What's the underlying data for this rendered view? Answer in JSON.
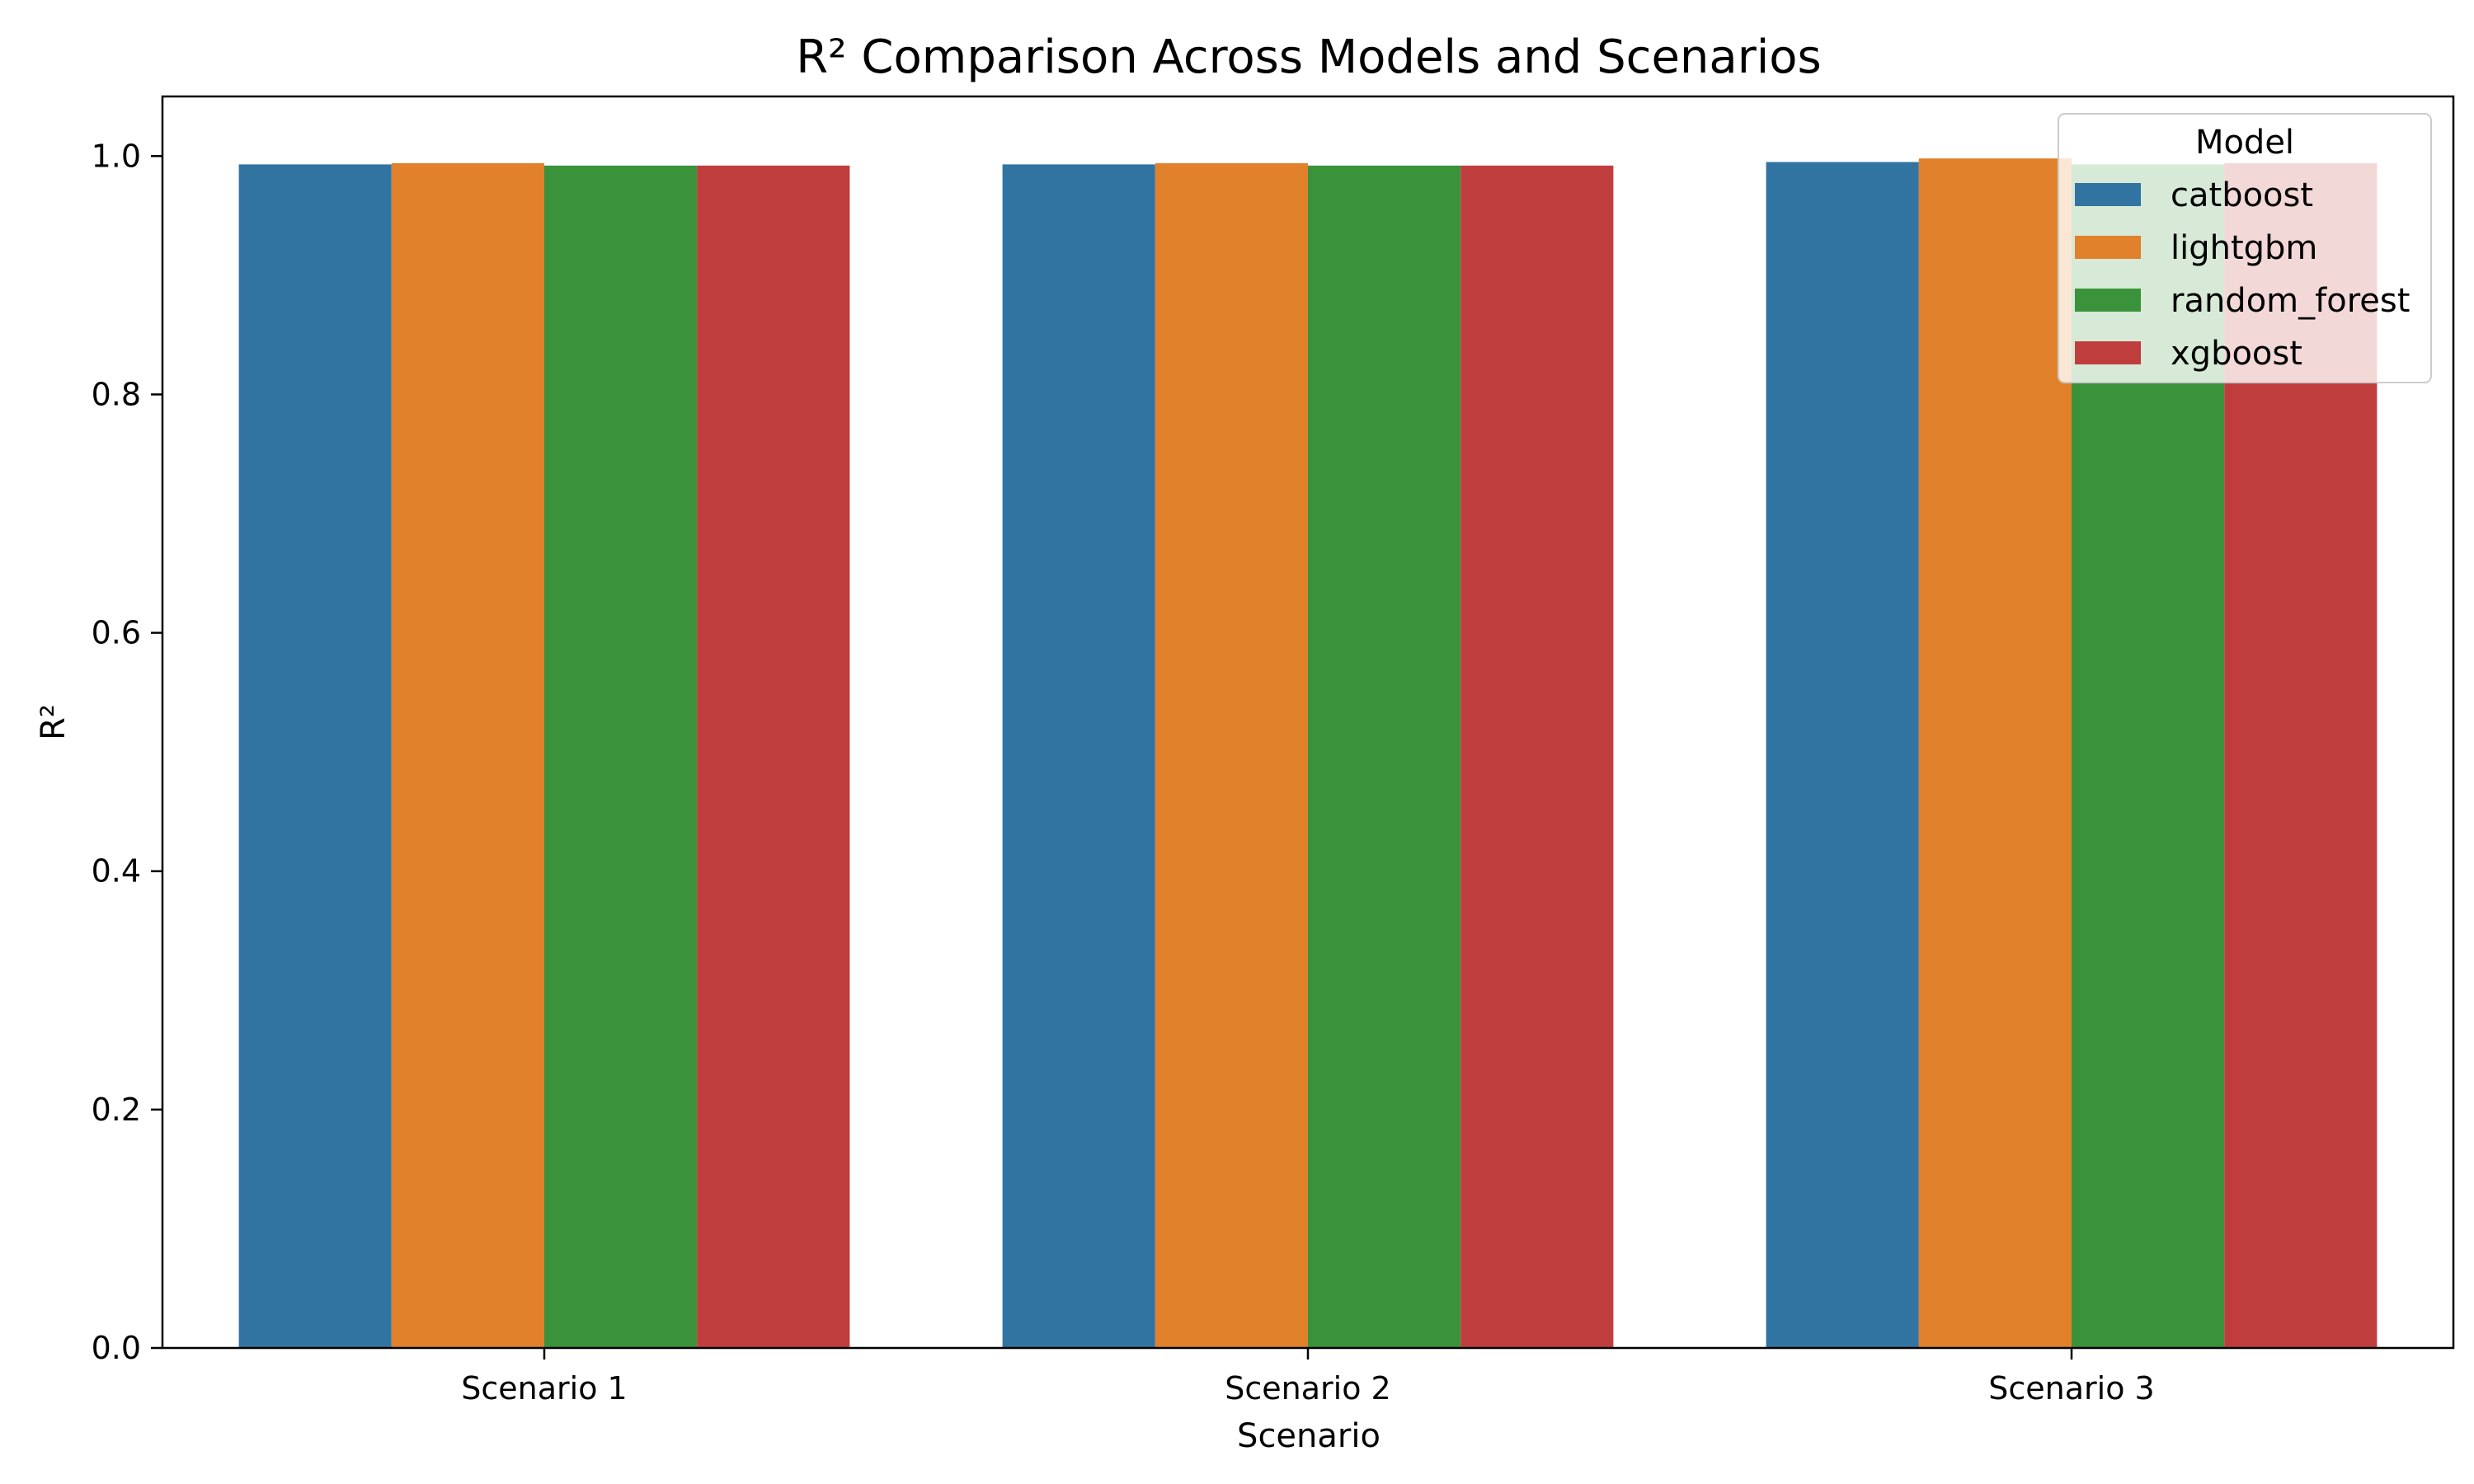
{
  "chart_data": {
    "type": "bar",
    "title": "R² Comparison Across Models and Scenarios",
    "xlabel": "Scenario",
    "ylabel": "R²",
    "categories": [
      "Scenario 1",
      "Scenario 2",
      "Scenario 3"
    ],
    "ylim": [
      0,
      1.05
    ],
    "yticks": [
      0.0,
      0.2,
      0.4,
      0.6,
      0.8,
      1.0
    ],
    "ytick_labels": [
      "0.0",
      "0.2",
      "0.4",
      "0.6",
      "0.8",
      "1.0"
    ],
    "grid": false,
    "legend": {
      "title": "Model",
      "placement": "top-right"
    },
    "series": [
      {
        "name": "catboost",
        "color": "#3274a1",
        "values": [
          0.993,
          0.993,
          0.995
        ]
      },
      {
        "name": "lightgbm",
        "color": "#e1812c",
        "values": [
          0.994,
          0.994,
          0.998
        ]
      },
      {
        "name": "random_forest",
        "color": "#3a923a",
        "values": [
          0.992,
          0.992,
          0.993
        ]
      },
      {
        "name": "xgboost",
        "color": "#c03d3e",
        "values": [
          0.992,
          0.992,
          0.994
        ]
      }
    ]
  }
}
